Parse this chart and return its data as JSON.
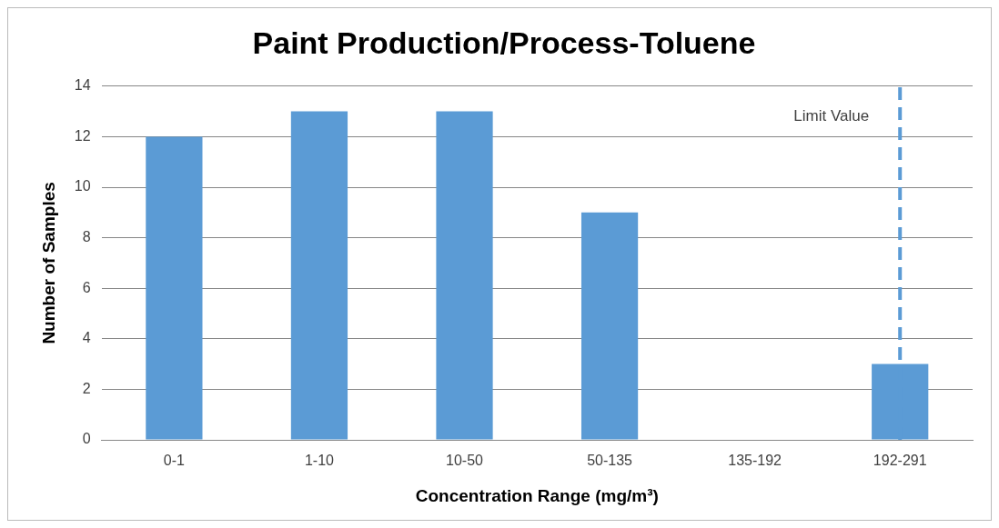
{
  "chart_data": {
    "type": "bar",
    "title": "Paint Production/Process-Toluene",
    "xlabel": "Concentration Range (mg/m³)",
    "ylabel": "Number of Samples",
    "categories": [
      "0-1",
      "1-10",
      "10-50",
      "50-135",
      "135-192",
      "192-291"
    ],
    "values": [
      12,
      13,
      13,
      9,
      0,
      3
    ],
    "color": "#5b9bd5",
    "ylim": [
      0,
      14
    ],
    "yticks": [
      0,
      2,
      4,
      6,
      8,
      10,
      12,
      14
    ],
    "grid": "y",
    "legend": false,
    "ref_lines": [
      {
        "axis": "x",
        "value": "192-291",
        "label": "Limit Value",
        "color": "#5b9bd5",
        "line_style": "dashed"
      }
    ]
  }
}
